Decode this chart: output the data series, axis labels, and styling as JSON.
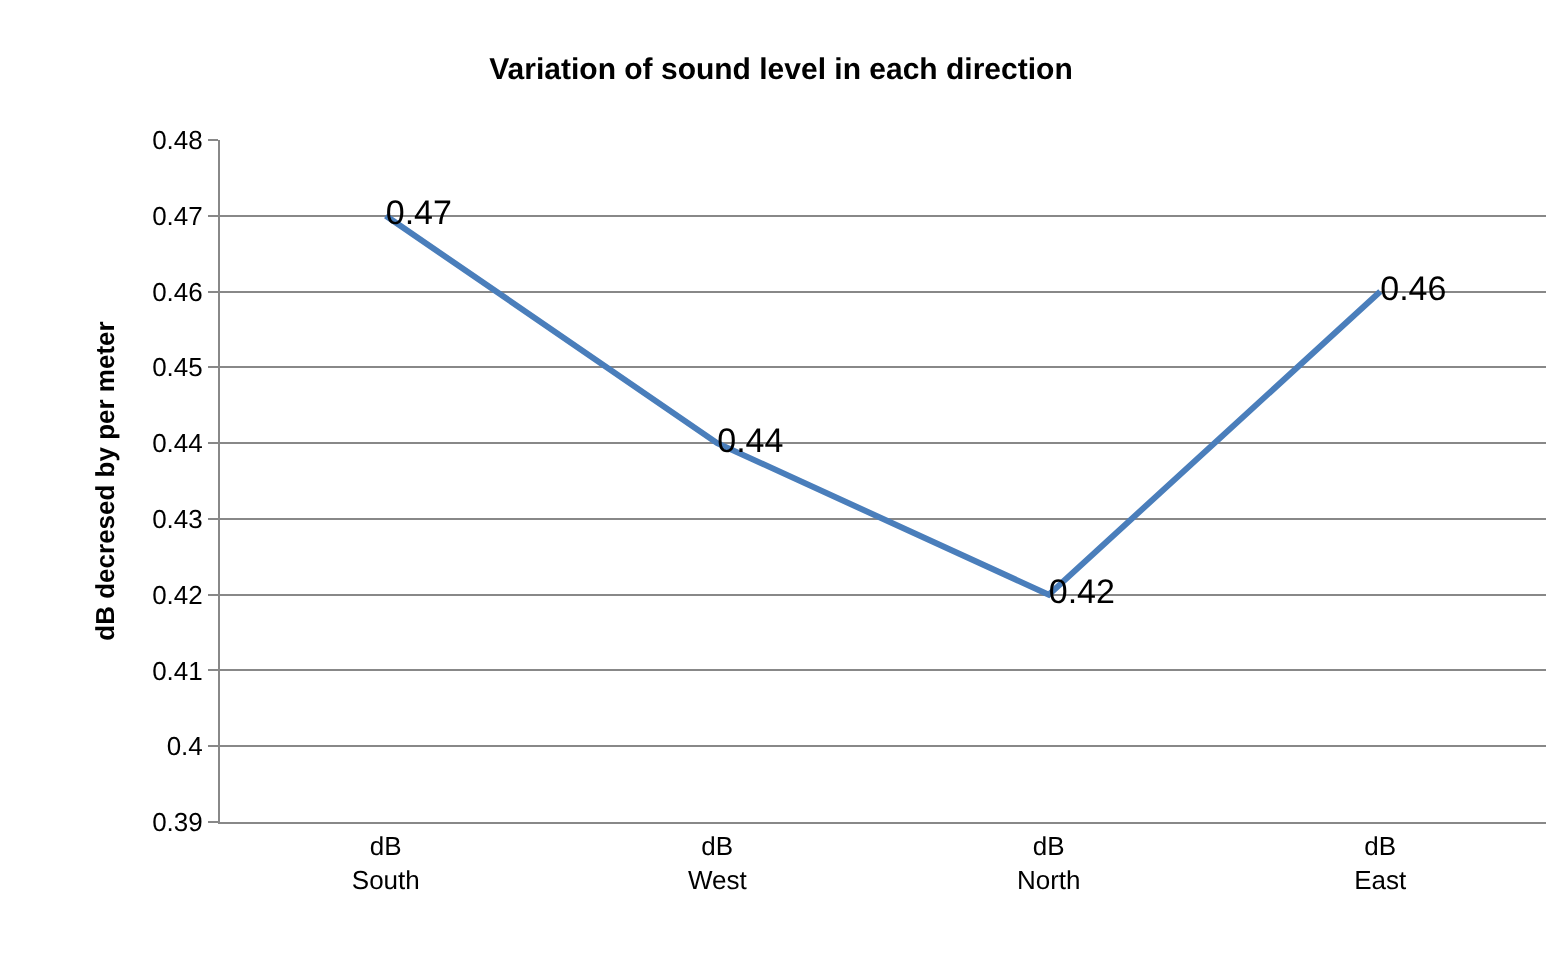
{
  "chart_data": {
    "type": "line",
    "title": "Variation of sound level in each direction",
    "ylabel": "dB decresed by per meter",
    "categories": [
      "dB\nSouth",
      "dB\nWest",
      "dB\nNorth",
      "dB\nEast"
    ],
    "series": [
      {
        "color": "#4a7ebb",
        "values": [
          0.47,
          0.44,
          0.42,
          0.46
        ]
      }
    ],
    "ylim": [
      0.39,
      0.48
    ],
    "yticks": [
      0.39,
      0.4,
      0.41,
      0.42,
      0.43,
      0.44,
      0.45,
      0.46,
      0.47,
      0.48
    ],
    "grid": "y",
    "legend": false,
    "marker": "none",
    "line_style": "solid",
    "data_labels": true
  }
}
